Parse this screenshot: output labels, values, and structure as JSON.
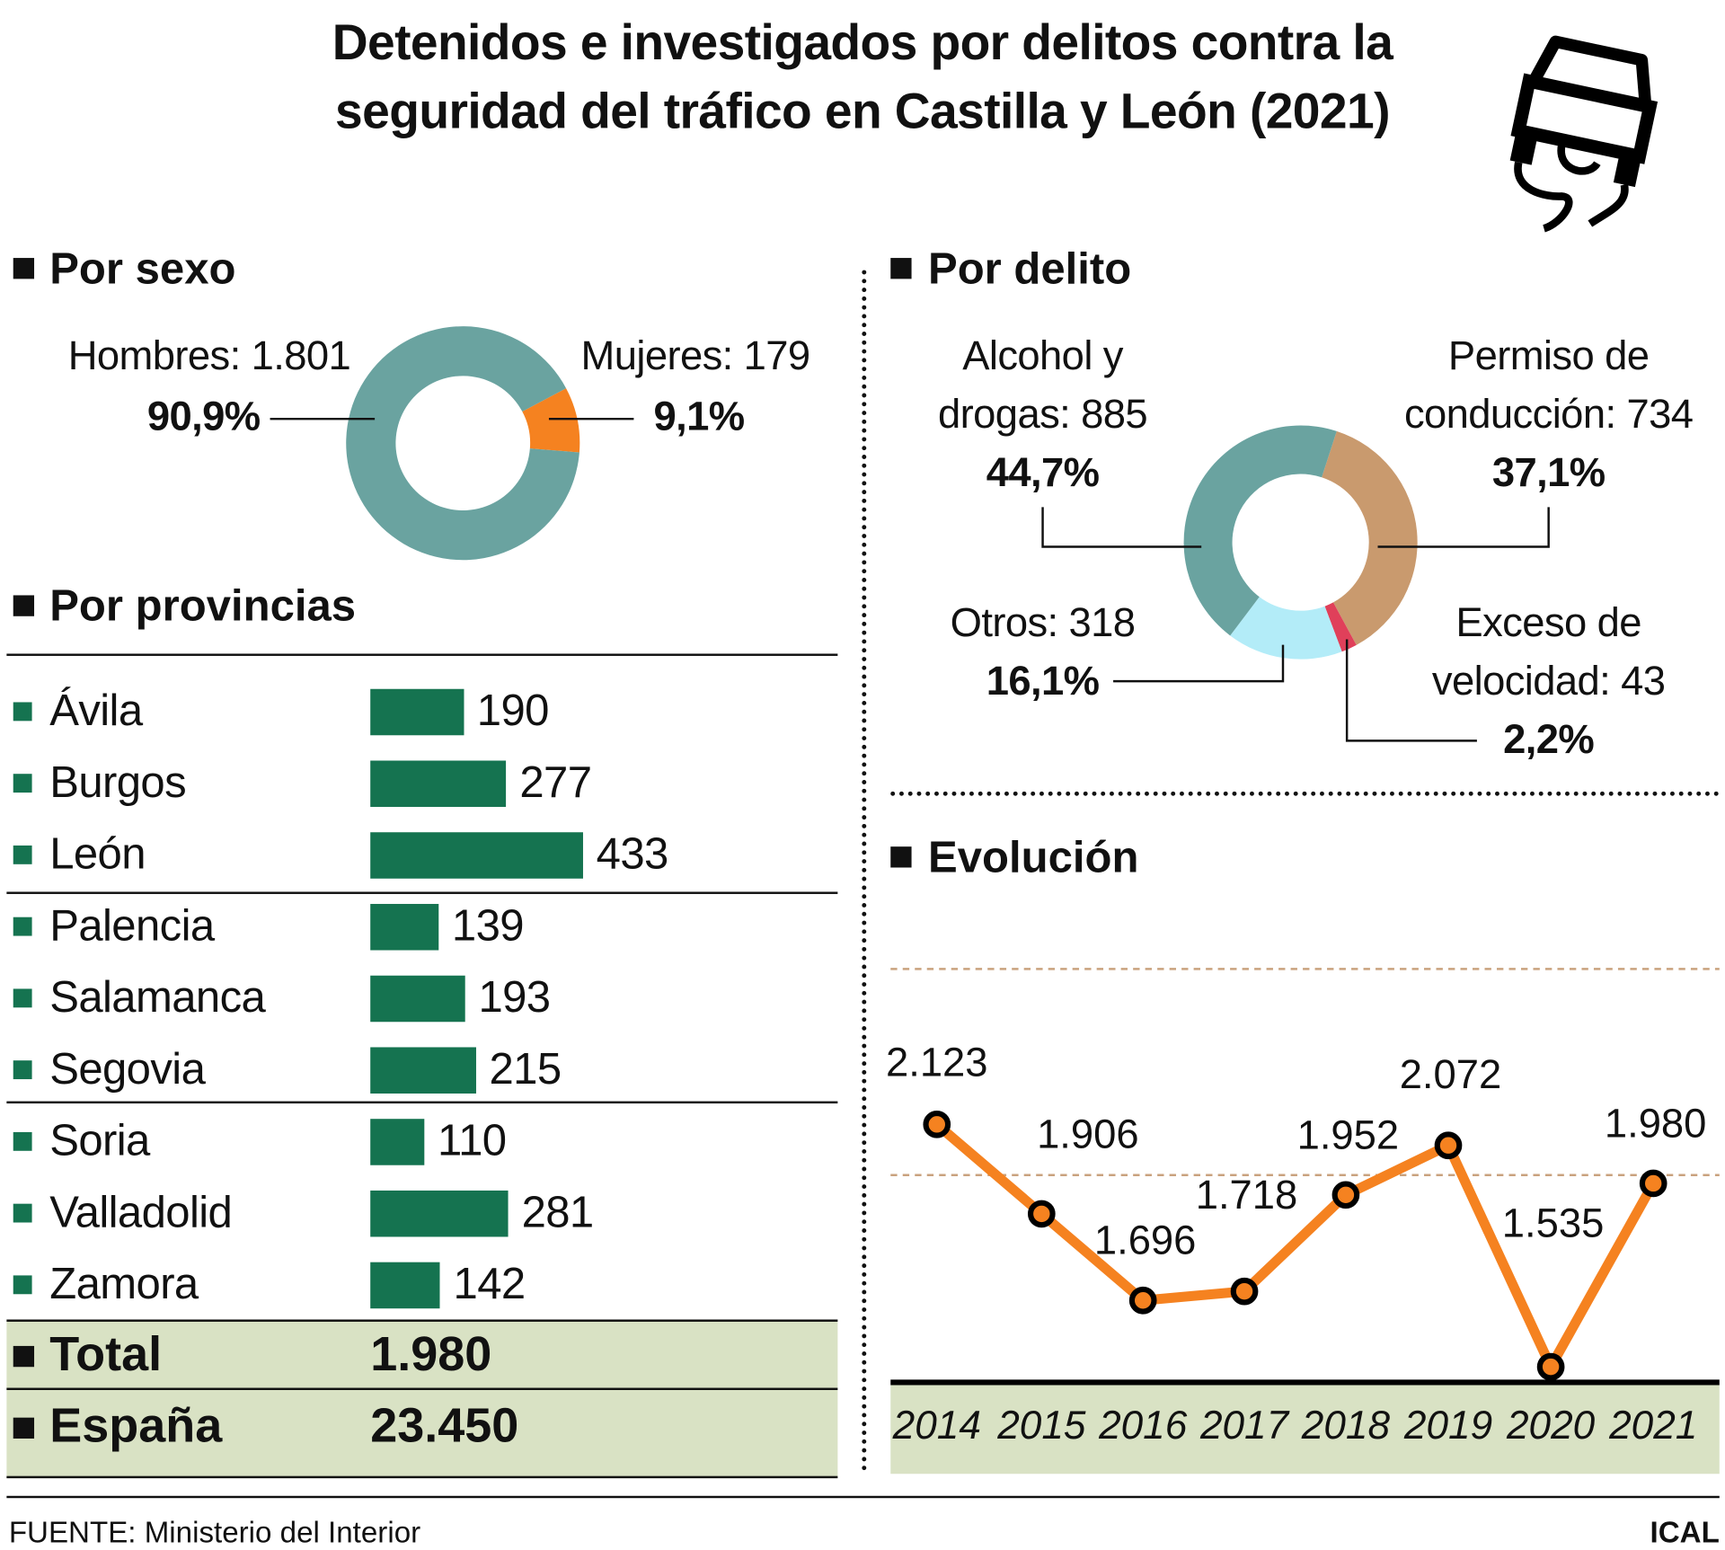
{
  "title_lines": [
    "Detenidos e investigados por delitos contra la",
    "seguridad del tráfico en Castilla y León (2021)"
  ],
  "icon": "skidding-car-icon",
  "colors": {
    "teal": "#6aa3a0",
    "orange": "#f58220",
    "tan": "#c99a6e",
    "red": "#e0405a",
    "lightblue": "#b3ecf8",
    "green": "#157350",
    "band": "#d9e2c4"
  },
  "sexo": {
    "heading": "Por sexo",
    "hombres_label": "Hombres: 1.801",
    "hombres_pct": "90,9%",
    "mujeres_label": "Mujeres: 179",
    "mujeres_pct": "9,1%"
  },
  "delito": {
    "heading": "Por delito",
    "alcohol": [
      "Alcohol y",
      "drogas: 885",
      "44,7%"
    ],
    "permiso": [
      "Permiso de",
      "conducción: 734",
      "37,1%"
    ],
    "otros": [
      "Otros: 318",
      "16,1%"
    ],
    "exceso": [
      "Exceso de",
      "velocidad: 43",
      "2,2%"
    ]
  },
  "provincias": {
    "heading": "Por provincias",
    "total_label": "Total",
    "total_value": "1.980",
    "espana_label": "España",
    "espana_value": "23.450"
  },
  "evolucion": {
    "heading": "Evolución"
  },
  "footer": {
    "source": "FUENTE: Ministerio del Interior",
    "brand": "ICAL"
  },
  "chart_data": [
    {
      "type": "pie",
      "title": "Por sexo",
      "donut": true,
      "slices": [
        {
          "label": "Hombres",
          "value": 1801,
          "pct": 90.9,
          "color": "#6aa3a0"
        },
        {
          "label": "Mujeres",
          "value": 179,
          "pct": 9.1,
          "color": "#f58220"
        }
      ]
    },
    {
      "type": "pie",
      "title": "Por delito",
      "donut": true,
      "slices": [
        {
          "label": "Permiso de conducción",
          "value": 734,
          "pct": 37.1,
          "color": "#c99a6e"
        },
        {
          "label": "Exceso de velocidad",
          "value": 43,
          "pct": 2.2,
          "color": "#e0405a"
        },
        {
          "label": "Otros",
          "value": 318,
          "pct": 16.1,
          "color": "#b3ecf8"
        },
        {
          "label": "Alcohol y drogas",
          "value": 885,
          "pct": 44.7,
          "color": "#6aa3a0"
        }
      ]
    },
    {
      "type": "bar",
      "orientation": "horizontal",
      "title": "Por provincias",
      "categories": [
        "Ávila",
        "Burgos",
        "León",
        "Palencia",
        "Salamanca",
        "Segovia",
        "Soria",
        "Valladolid",
        "Zamora"
      ],
      "values": [
        190,
        277,
        433,
        139,
        193,
        215,
        110,
        281,
        142
      ],
      "value_labels": [
        "190",
        "277",
        "433",
        "139",
        "193",
        "215",
        "110",
        "281",
        "142"
      ],
      "color": "#157350"
    },
    {
      "type": "line",
      "title": "Evolución",
      "categories": [
        "2014",
        "2015",
        "2016",
        "2017",
        "2018",
        "2019",
        "2020",
        "2021"
      ],
      "values": [
        2123,
        1906,
        1696,
        1718,
        1952,
        2072,
        1535,
        1980
      ],
      "value_labels": [
        "2.123",
        "1.906",
        "1.696",
        "1.718",
        "1.952",
        "2.072",
        "1.535",
        "1.980"
      ],
      "ylim": [
        1500,
        2500
      ],
      "gridlines": [
        2000,
        2500
      ],
      "color": "#f58220"
    }
  ]
}
